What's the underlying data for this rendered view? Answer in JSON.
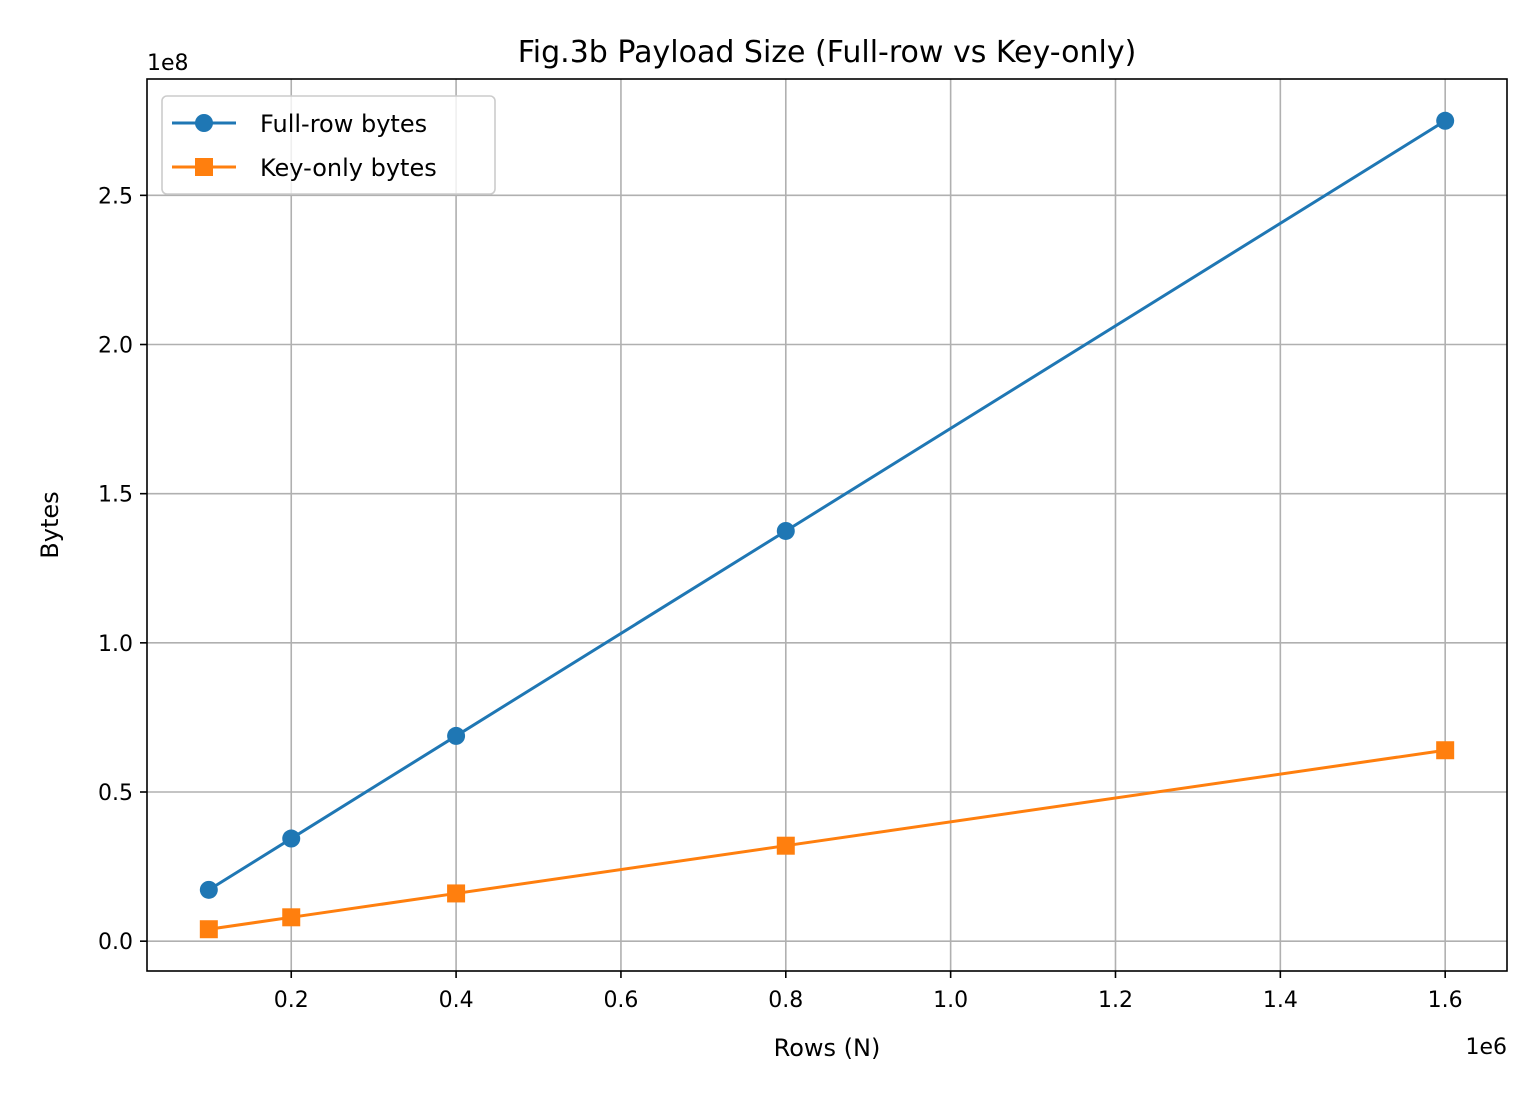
{
  "chart_data": {
    "type": "line",
    "title": "Fig.3b Payload Size (Full-row vs Key-only)",
    "xlabel": "Rows (N)",
    "ylabel": "Bytes",
    "x_offset_label": "1e6",
    "y_offset_label": "1e8",
    "xlim": [
      0.025,
      1.675
    ],
    "ylim": [
      -0.1,
      2.89
    ],
    "x_ticks": [
      0.2,
      0.4,
      0.6,
      0.8,
      1.0,
      1.2,
      1.4,
      1.6
    ],
    "x_tick_labels": [
      "0.2",
      "0.4",
      "0.6",
      "0.8",
      "1.0",
      "1.2",
      "1.4",
      "1.6"
    ],
    "y_ticks": [
      0.0,
      0.5,
      1.0,
      1.5,
      2.0,
      2.5
    ],
    "y_tick_labels": [
      "0.0",
      "0.5",
      "1.0",
      "1.5",
      "2.0",
      "2.5"
    ],
    "grid": true,
    "legend_position": "upper-left",
    "x": [
      0.1,
      0.2,
      0.4,
      0.8,
      1.6
    ],
    "series": [
      {
        "name": "Full-row bytes",
        "marker": "circle",
        "color": "#1f77b4",
        "values": [
          0.172,
          0.344,
          0.688,
          1.375,
          2.75
        ]
      },
      {
        "name": "Key-only bytes",
        "marker": "square",
        "color": "#ff7f0e",
        "values": [
          0.04,
          0.08,
          0.16,
          0.32,
          0.64
        ]
      }
    ]
  }
}
